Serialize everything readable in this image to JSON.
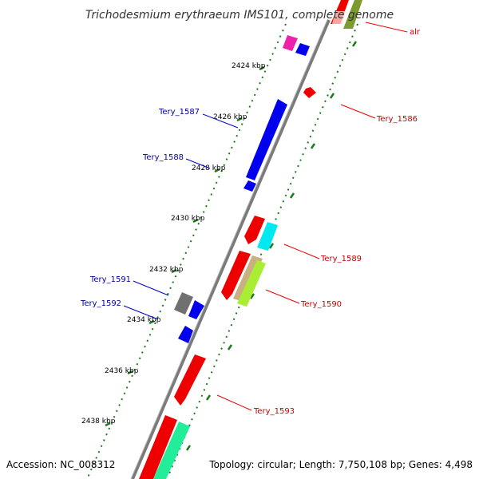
{
  "title": "Trichodesmium erythraeum IMS101, complete genome",
  "footer": {
    "accession": "Accession: NC_008312",
    "topology": "Topology: circular; Length: 7,750,108 bp; Genes: 4,498"
  },
  "kbp_ticks": [
    "2424 kbp",
    "2426 kbp",
    "2428 kbp",
    "2430 kbp",
    "2432 kbp",
    "2434 kbp",
    "2436 kbp",
    "2438 kbp"
  ],
  "gene_labels_forward": [
    "alr",
    "Tery_1586",
    "Tery_1589",
    "Tery_1590",
    "Tery_1593"
  ],
  "gene_labels_reverse": [
    "Tery_1587",
    "Tery_1588",
    "Tery_1591",
    "Tery_1592"
  ],
  "colors": {
    "forward_label": "#cc0000",
    "reverse_label": "#000099",
    "backbone": "#808080",
    "tick_dots": "#006600"
  }
}
